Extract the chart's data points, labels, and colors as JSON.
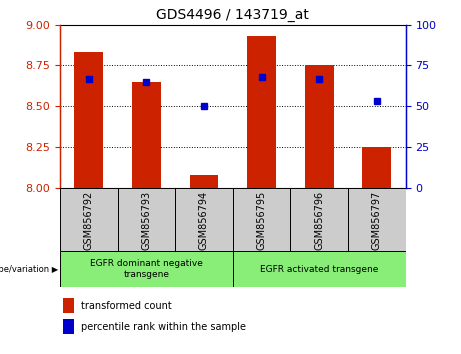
{
  "title": "GDS4496 / 143719_at",
  "samples": [
    "GSM856792",
    "GSM856793",
    "GSM856794",
    "GSM856795",
    "GSM856796",
    "GSM856797"
  ],
  "red_values": [
    8.83,
    8.65,
    8.08,
    8.93,
    8.75,
    8.25
  ],
  "blue_values": [
    67,
    65,
    50,
    68,
    67,
    53
  ],
  "ymin": 8.0,
  "ymax": 9.0,
  "y2min": 0,
  "y2max": 100,
  "yticks": [
    8.0,
    8.25,
    8.5,
    8.75,
    9.0
  ],
  "y2ticks": [
    0,
    25,
    50,
    75,
    100
  ],
  "group1_label": "EGFR dominant negative\ntransgene",
  "group2_label": "EGFR activated transgene",
  "group1_indices": [
    0,
    1,
    2
  ],
  "group2_indices": [
    3,
    4,
    5
  ],
  "bar_color": "#cc2200",
  "dot_color": "#0000cc",
  "left_tick_color": "#cc2200",
  "right_tick_color": "#0000cc",
  "group_bg_color": "#88ee77",
  "sample_bg_color": "#cccccc",
  "legend_red_label": "transformed count",
  "legend_blue_label": "percentile rank within the sample",
  "bar_width": 0.5,
  "figsize": [
    4.61,
    3.54
  ],
  "dpi": 100
}
